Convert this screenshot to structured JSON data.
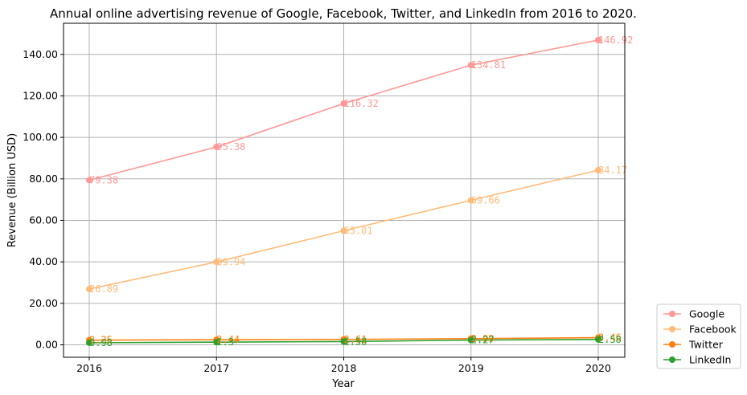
{
  "chart_data": {
    "type": "line",
    "title": "Annual online advertising revenue of Google, Facebook, Twitter, and LinkedIn from 2016 to 2020.",
    "xlabel": "Year",
    "ylabel": "Revenue (Billion USD)",
    "x": [
      "2016",
      "2017",
      "2018",
      "2019",
      "2020"
    ],
    "ylim": [
      -6,
      155
    ],
    "yticks": [
      "0.00",
      "20.00",
      "40.00",
      "60.00",
      "80.00",
      "100.00",
      "120.00",
      "140.00"
    ],
    "grid": true,
    "legend_position": "outside-bottom-right",
    "series": [
      {
        "name": "Google",
        "color": "#ff9896",
        "values": [
          79.38,
          95.38,
          116.32,
          134.81,
          146.92
        ],
        "labels": [
          "79.38",
          "95.38",
          "116.32",
          "134.81",
          "146.92"
        ]
      },
      {
        "name": "Facebook",
        "color": "#ffbb78",
        "values": [
          26.89,
          39.94,
          55.01,
          69.66,
          84.17
        ],
        "labels": [
          "26.89",
          "39.94",
          "55.01",
          "69.66",
          "84.17"
        ]
      },
      {
        "name": "Twitter",
        "color": "#ff7f0e",
        "values": [
          2.25,
          2.44,
          2.61,
          2.99,
          3.46
        ],
        "labels": [
          "2.25",
          "2.44",
          "2.61",
          "2.99",
          "3.46"
        ]
      },
      {
        "name": "LinkedIn",
        "color": "#2ca02c",
        "values": [
          0.98,
          1.3,
          1.58,
          2.27,
          2.58
        ],
        "labels": [
          "0.98",
          "1.3",
          "1.58",
          "2.27",
          "2.58"
        ]
      }
    ]
  }
}
